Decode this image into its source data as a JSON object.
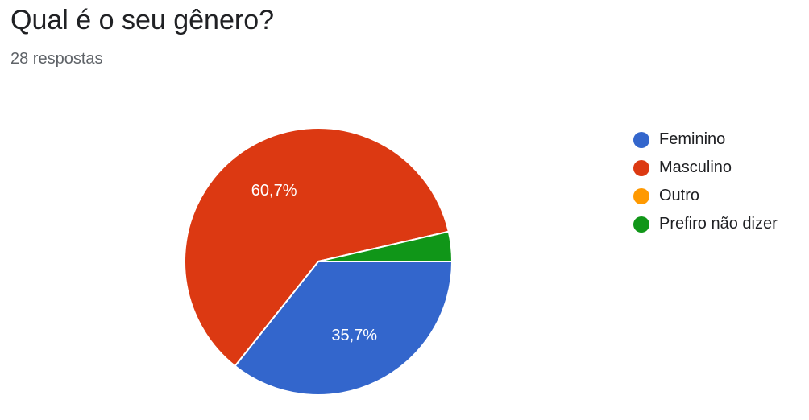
{
  "header": {
    "title": "Qual é o seu gênero?",
    "subtitle": "28 respostas"
  },
  "chart_data": {
    "type": "pie",
    "title": "Qual é o seu gênero?",
    "subtitle": "28 respostas",
    "legend_position": "right",
    "slices": [
      {
        "label": "Feminino",
        "value": 35.7,
        "percent_label": "35,7%",
        "show_label": true,
        "color": "#3366cc"
      },
      {
        "label": "Masculino",
        "value": 60.7,
        "percent_label": "60,7%",
        "show_label": true,
        "color": "#dc3912"
      },
      {
        "label": "Outro",
        "value": 0,
        "percent_label": "",
        "show_label": false,
        "color": "#ff9900"
      },
      {
        "label": "Prefiro não dizer",
        "value": 3.6,
        "percent_label": "",
        "show_label": false,
        "color": "#109618"
      }
    ]
  }
}
